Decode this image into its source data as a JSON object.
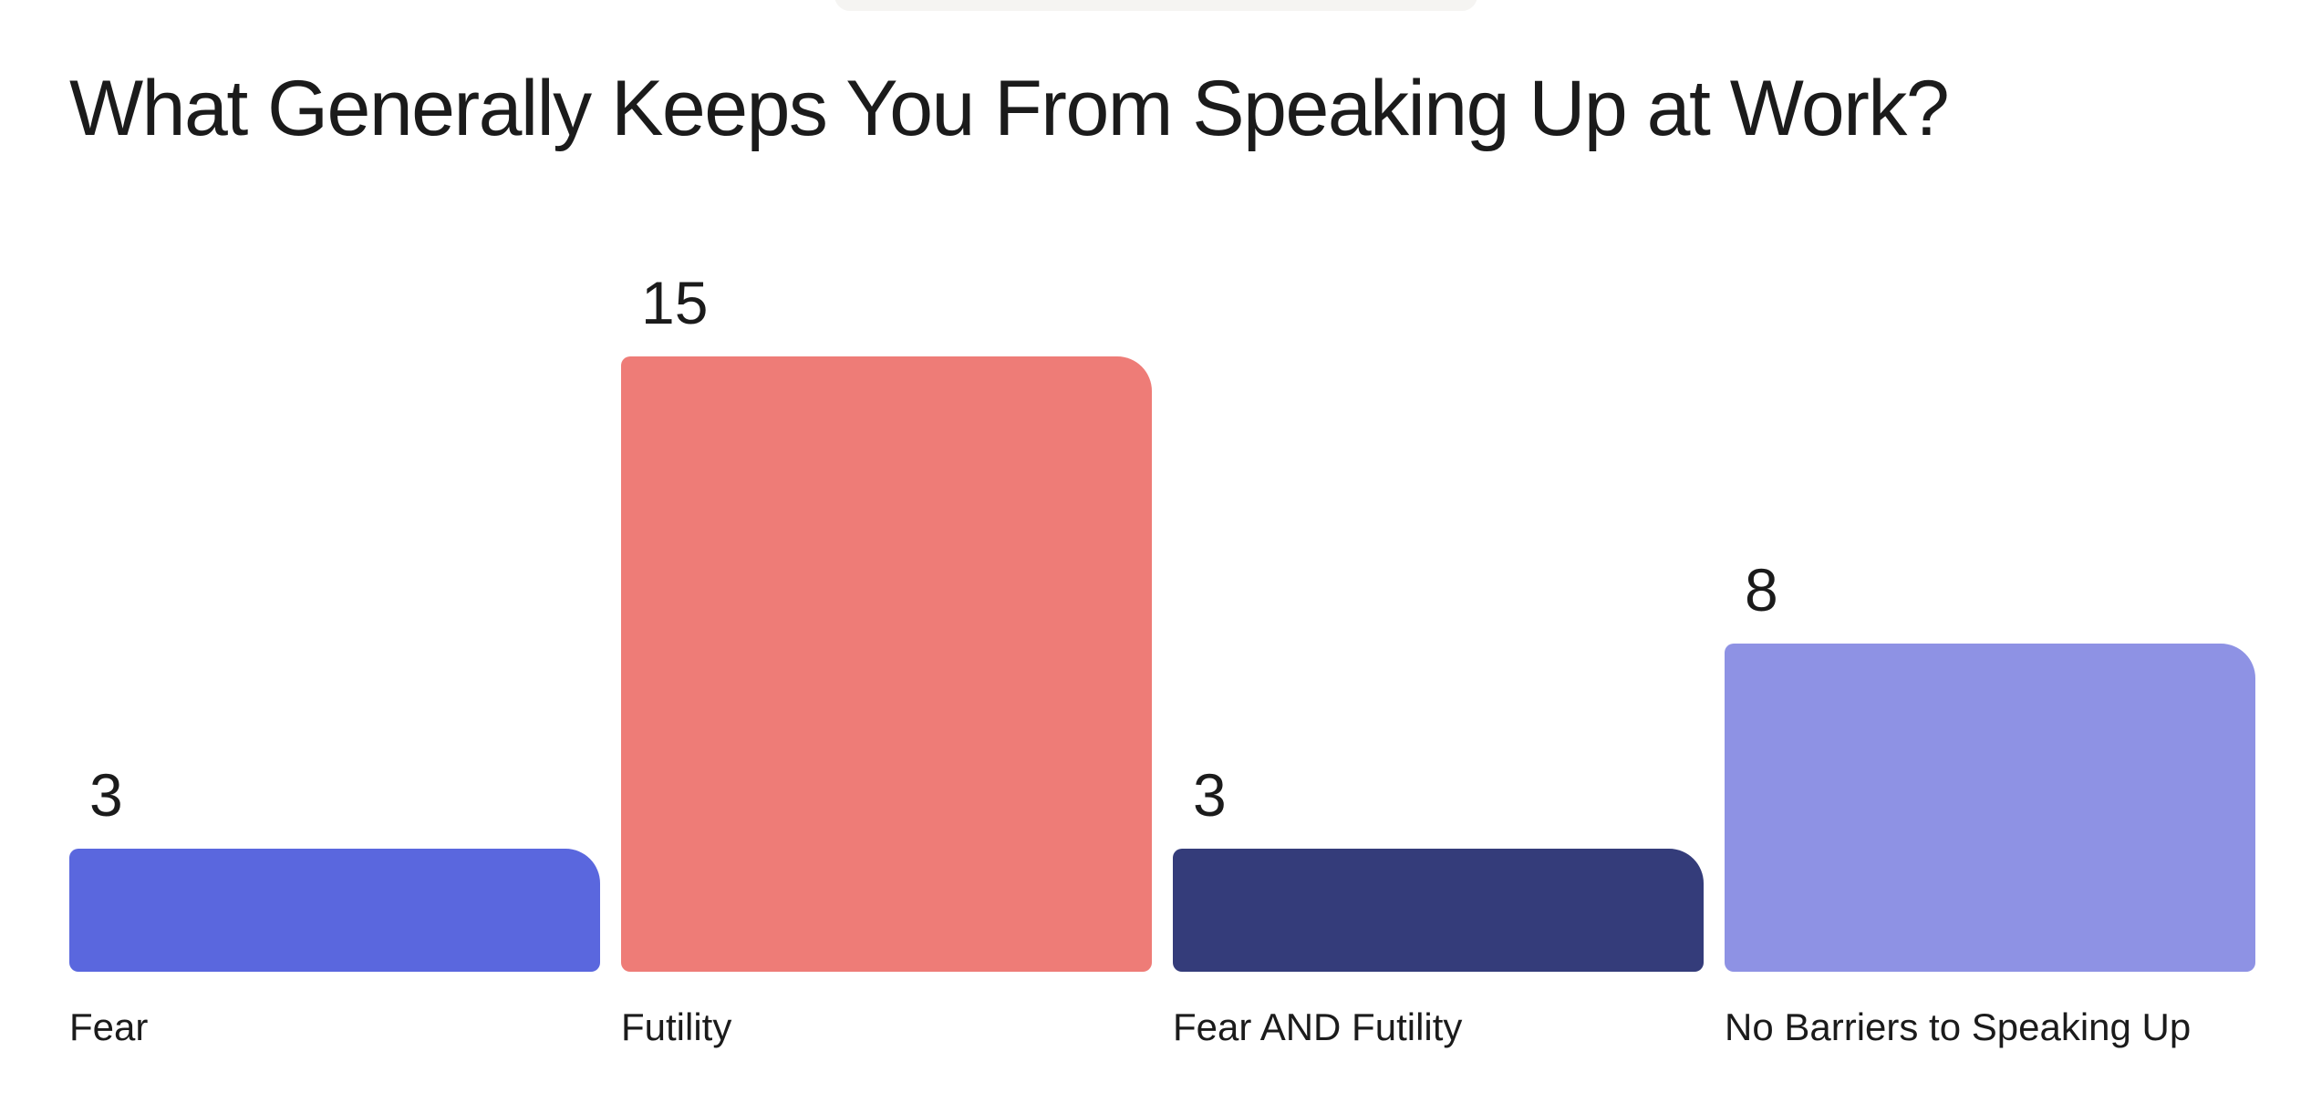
{
  "chart_data": {
    "type": "bar",
    "title": "What Generally Keeps You From Speaking Up at Work?",
    "categories": [
      "Fear",
      "Futility",
      "Fear AND Futility",
      "No Barriers to Speaking Up"
    ],
    "values": [
      3,
      15,
      3,
      8
    ],
    "value_labels": [
      "3",
      "15",
      "3",
      "8"
    ],
    "colors": [
      "#5A67DE",
      "#EE7C77",
      "#343C7A",
      "#8E92E4"
    ],
    "xlabel": "",
    "ylabel": "",
    "ylim": [
      0,
      15
    ],
    "grid": false,
    "legend": false,
    "value_label_position": "above-bar-left",
    "category_label_position": "below-bar-left",
    "text_color": "#1B1B1B",
    "background_color": "#FFFFFF",
    "toolbar_pill_color": "#F5F4F2"
  }
}
